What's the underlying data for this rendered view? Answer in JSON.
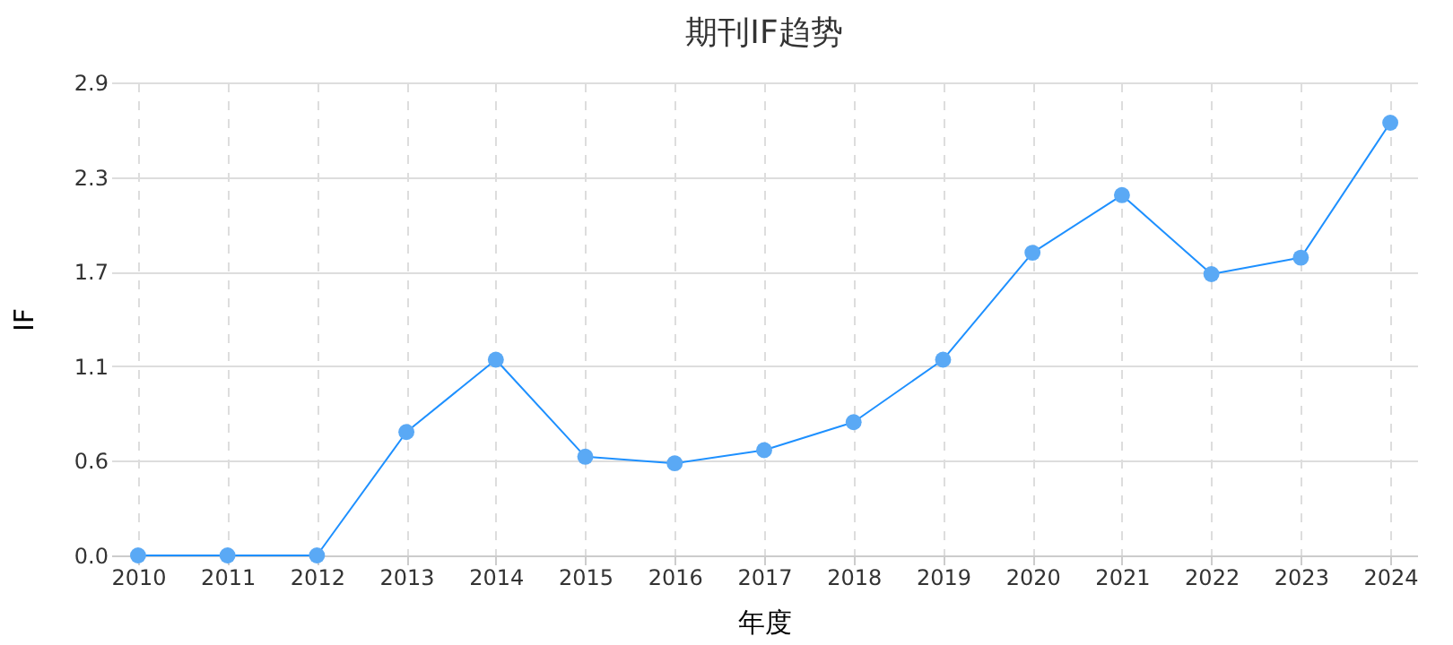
{
  "chart_data": {
    "type": "line",
    "title": "期刊IF趋势",
    "xlabel": "年度",
    "ylabel": "IF",
    "categories": [
      "2010",
      "2011",
      "2012",
      "2013",
      "2014",
      "2015",
      "2016",
      "2017",
      "2018",
      "2019",
      "2020",
      "2021",
      "2022",
      "2023",
      "2024"
    ],
    "series": [
      {
        "color": "#1e90ff",
        "values": [
          0,
          0,
          0,
          0.75,
          1.19,
          0.6,
          0.56,
          0.64,
          0.81,
          1.19,
          1.84,
          2.19,
          1.71,
          1.81,
          2.63
        ]
      }
    ],
    "ylim": [
      0,
      2.875
    ],
    "yticks": [
      {
        "value": 0,
        "label": "0.0"
      },
      {
        "value": 0.575,
        "label": "0.6"
      },
      {
        "value": 1.15,
        "label": "1.1"
      },
      {
        "value": 1.725,
        "label": "1.7"
      },
      {
        "value": 2.3,
        "label": "2.3"
      },
      {
        "value": 2.875,
        "label": "2.9"
      }
    ],
    "grid": true,
    "marker": "circle",
    "line_style": "solid"
  }
}
